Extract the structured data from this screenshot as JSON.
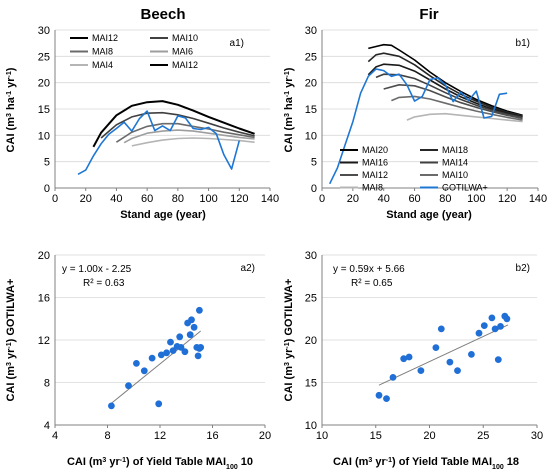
{
  "panels": {
    "a1": {
      "title": "Beech",
      "panel_label": "a1)",
      "xlabel": "Stand age (year)",
      "ylabel_main": "CAI (m",
      "ylabel_sup1": "3",
      "ylabel_mid": " ha",
      "ylabel_sup2": "-1",
      "ylabel_mid2": " yr",
      "ylabel_sup3": "-1",
      "ylabel_end": ")"
    },
    "b1": {
      "title": "Fir",
      "panel_label": "b1)",
      "xlabel": "Stand age (year)",
      "ylabel_main": "CAI (m",
      "ylabel_sup1": "3",
      "ylabel_mid": " ha",
      "ylabel_sup2": "-1",
      "ylabel_mid2": " yr",
      "ylabel_sup3": "-1",
      "ylabel_end": ")"
    },
    "a2": {
      "panel_label": "a2)",
      "equation": "y = 1.00x - 2.25",
      "r2": "R² = 0.63",
      "xlabel_pre": "CAI (m",
      "xlabel_sup1": "3",
      "xlabel_mid": " yr",
      "xlabel_sup2": "-1",
      "xlabel_post": ") of Yield Table MAI",
      "xlabel_sub": "100",
      "xlabel_end": " 10",
      "ylabel_pre": "CAI (m",
      "ylabel_sup1": "3",
      "ylabel_mid": " yr",
      "ylabel_sup2": "-1",
      "ylabel_end": ") GOTILWA+"
    },
    "b2": {
      "panel_label": "b2)",
      "equation": "y = 0.59x + 5.66",
      "r2": "R² = 0.65",
      "xlabel_pre": "CAI (m",
      "xlabel_sup1": "3",
      "xlabel_mid": " yr",
      "xlabel_sup2": "-1",
      "xlabel_post": ") of Yield Table MAI",
      "xlabel_sub": "100",
      "xlabel_end": " 18",
      "ylabel_pre": "CAI (m",
      "ylabel_sup1": "3",
      "ylabel_mid": " yr",
      "ylabel_sup2": "-1",
      "ylabel_end": ") GOTILWA+"
    }
  },
  "colors": {
    "MAI20": "#000000",
    "MAI18": "#262626",
    "MAI16": "#1a1a1a",
    "MAI14": "#404040",
    "MAI12": "#4d4d4d",
    "MAI10": "#6b6b6b",
    "MAI8": "#8c8c8c",
    "MAI6": "#9e9e9e",
    "MAI4": "#b5b5b5",
    "GOTILWA": "#1f77d4",
    "point": "#1f6fd6",
    "trend": "#7f7f7f"
  },
  "chart_data": [
    {
      "id": "a1",
      "type": "line",
      "title": "Beech",
      "xlabel": "Stand age (year)",
      "ylabel": "CAI (m3 ha-1 yr-1)",
      "xlim": [
        0,
        140
      ],
      "ylim": [
        0,
        30
      ],
      "xticks": [
        0,
        20,
        40,
        60,
        80,
        100,
        120,
        140
      ],
      "yticks": [
        0,
        5,
        10,
        15,
        20,
        25,
        30
      ],
      "legend": [
        [
          "MAI12",
          "MAI10"
        ],
        [
          "MAI8",
          "MAI6"
        ],
        [
          "MAI4",
          "MAI12"
        ]
      ],
      "series": [
        {
          "name": "MAI12",
          "color_key": "MAI20",
          "width": 2,
          "x": [
            25,
            30,
            40,
            50,
            60,
            70,
            80,
            90,
            100,
            110,
            120,
            130
          ],
          "y": [
            7.8,
            10.5,
            13.8,
            15.6,
            16.3,
            16.5,
            15.8,
            14.7,
            13.5,
            12.4,
            11.3,
            10.3
          ]
        },
        {
          "name": "MAI10",
          "color_key": "MAI14",
          "width": 1.6,
          "x": [
            30,
            40,
            50,
            60,
            70,
            80,
            90,
            100,
            110,
            120,
            130
          ],
          "y": [
            9.5,
            12.0,
            13.5,
            14.2,
            14.3,
            13.9,
            13.2,
            12.3,
            11.4,
            10.6,
            9.9
          ]
        },
        {
          "name": "MAI8",
          "color_key": "MAI10",
          "width": 1.6,
          "x": [
            40,
            50,
            60,
            70,
            80,
            90,
            100,
            110,
            120,
            130
          ],
          "y": [
            8.7,
            10.6,
            11.7,
            12.2,
            12.2,
            11.7,
            11.2,
            10.6,
            10.1,
            9.6
          ]
        },
        {
          "name": "MAI6",
          "color_key": "MAI6",
          "width": 1.6,
          "x": [
            45,
            50,
            60,
            70,
            80,
            90,
            100,
            110,
            120,
            130
          ],
          "y": [
            8.6,
            9.4,
            10.4,
            10.8,
            11.0,
            10.8,
            10.4,
            10.0,
            9.6,
            9.3
          ]
        },
        {
          "name": "MAI4",
          "color_key": "MAI4",
          "width": 1.6,
          "x": [
            50,
            60,
            70,
            80,
            90,
            100,
            110,
            120,
            130
          ],
          "y": [
            8.0,
            8.6,
            9.1,
            9.4,
            9.5,
            9.4,
            9.2,
            9.0,
            8.7
          ]
        },
        {
          "name": "GOTILWA+",
          "color_key": "GOTILWA",
          "width": 1.6,
          "x": [
            15,
            20,
            25,
            30,
            35,
            40,
            45,
            50,
            55,
            60,
            65,
            70,
            75,
            80,
            85,
            90,
            95,
            100,
            105,
            110,
            115,
            120
          ],
          "y": [
            2.6,
            3.4,
            6.1,
            8.4,
            10.2,
            11.3,
            12.5,
            10.8,
            13.2,
            14.6,
            10.9,
            11.8,
            10.9,
            13.7,
            13.3,
            11.3,
            11.1,
            11.5,
            10.3,
            6.3,
            3.6,
            9.0
          ]
        }
      ]
    },
    {
      "id": "b1",
      "type": "line",
      "title": "Fir",
      "xlabel": "Stand age (year)",
      "ylabel": "CAI (m3 ha-1 yr-1)",
      "xlim": [
        0,
        140
      ],
      "ylim": [
        0,
        30
      ],
      "xticks": [
        0,
        20,
        40,
        60,
        80,
        100,
        120,
        140
      ],
      "yticks": [
        0,
        5,
        10,
        15,
        20,
        25,
        30
      ],
      "legend": [
        [
          "MAI20",
          "MAI18"
        ],
        [
          "MAI16",
          "MAI14"
        ],
        [
          "MAI12",
          "MAI10"
        ],
        [
          "MAI8",
          "GOTILWA+"
        ]
      ],
      "series": [
        {
          "name": "MAI20",
          "color_key": "MAI20",
          "width": 1.6,
          "x": [
            30,
            40,
            45,
            50,
            60,
            70,
            80,
            90,
            100,
            110,
            120,
            130
          ],
          "y": [
            26.5,
            27.2,
            27.1,
            26.2,
            24.3,
            22.0,
            20.0,
            18.3,
            16.8,
            15.6,
            14.6,
            13.8
          ]
        },
        {
          "name": "MAI18",
          "color_key": "MAI18",
          "width": 1.6,
          "x": [
            30,
            35,
            40,
            50,
            60,
            70,
            80,
            90,
            100,
            110,
            120,
            130
          ],
          "y": [
            24.0,
            25.3,
            25.6,
            25.0,
            23.4,
            21.3,
            19.4,
            17.8,
            16.5,
            15.3,
            14.4,
            13.7
          ]
        },
        {
          "name": "MAI16",
          "color_key": "MAI16",
          "width": 1.6,
          "x": [
            30,
            35,
            40,
            50,
            60,
            70,
            80,
            90,
            100,
            110,
            120,
            130
          ],
          "y": [
            21.5,
            23.0,
            23.5,
            23.3,
            22.2,
            20.5,
            18.8,
            17.3,
            16.1,
            15.0,
            14.2,
            13.5
          ]
        },
        {
          "name": "MAI14",
          "color_key": "MAI14",
          "width": 1.6,
          "x": [
            35,
            40,
            50,
            60,
            70,
            80,
            90,
            100,
            110,
            120,
            130
          ],
          "y": [
            21.0,
            21.6,
            21.5,
            20.8,
            19.5,
            18.1,
            16.8,
            15.7,
            14.8,
            14.0,
            13.4
          ]
        },
        {
          "name": "MAI12",
          "color_key": "MAI12",
          "width": 1.6,
          "x": [
            40,
            50,
            60,
            70,
            80,
            90,
            100,
            110,
            120,
            130
          ],
          "y": [
            18.8,
            19.6,
            19.4,
            18.5,
            17.3,
            16.2,
            15.3,
            14.5,
            13.8,
            13.2
          ]
        },
        {
          "name": "MAI10",
          "color_key": "MAI10",
          "width": 1.6,
          "x": [
            45,
            50,
            60,
            70,
            80,
            90,
            100,
            110,
            120,
            130
          ],
          "y": [
            16.6,
            17.2,
            17.4,
            16.9,
            16.1,
            15.3,
            14.6,
            14.0,
            13.4,
            12.9
          ]
        },
        {
          "name": "MAI8",
          "color_key": "MAI4",
          "width": 1.6,
          "x": [
            55,
            60,
            70,
            80,
            90,
            100,
            110,
            120,
            130
          ],
          "y": [
            12.9,
            13.5,
            14.0,
            14.1,
            13.8,
            13.5,
            13.2,
            12.9,
            12.6
          ]
        },
        {
          "name": "GOTILWA+",
          "color_key": "GOTILWA",
          "width": 1.6,
          "x": [
            5,
            10,
            15,
            20,
            25,
            30,
            35,
            40,
            45,
            50,
            55,
            60,
            65,
            70,
            75,
            80,
            85,
            90,
            95,
            100,
            105,
            110,
            115,
            120
          ],
          "y": [
            0.8,
            3.8,
            8.2,
            12.6,
            18.0,
            21.2,
            22.6,
            22.3,
            21.2,
            21.6,
            19.6,
            16.5,
            17.4,
            20.6,
            20.9,
            19.6,
            16.4,
            18.2,
            16.6,
            18.4,
            13.3,
            13.6,
            17.8,
            18.0
          ]
        }
      ]
    },
    {
      "id": "a2",
      "type": "scatter",
      "xlabel": "CAI (m3 yr-1) of Yield Table MAI100 10",
      "ylabel": "CAI (m3 yr-1) GOTILWA+",
      "xlim": [
        4,
        20
      ],
      "ylim": [
        4,
        20
      ],
      "xticks": [
        4,
        8,
        12,
        16,
        20
      ],
      "yticks": [
        4,
        8,
        12,
        16,
        20
      ],
      "trendline": {
        "slope": 1.0,
        "intercept": -2.25,
        "x_range": [
          8.3,
          15.1
        ]
      },
      "x": [
        8.3,
        9.6,
        10.2,
        10.8,
        11.4,
        11.9,
        12.1,
        12.5,
        12.8,
        13.0,
        13.3,
        13.5,
        13.6,
        13.9,
        14.1,
        14.3,
        14.4,
        14.6,
        14.8,
        14.9,
        15.0,
        15.0,
        15.1
      ],
      "y": [
        5.8,
        7.7,
        9.8,
        9.1,
        10.3,
        6.0,
        10.6,
        10.8,
        11.8,
        11.0,
        11.4,
        12.3,
        11.3,
        10.9,
        13.6,
        12.5,
        13.9,
        13.2,
        11.3,
        10.5,
        11.2,
        14.8,
        11.3
      ]
    },
    {
      "id": "b2",
      "type": "scatter",
      "xlabel": "CAI (m3 yr-1) of Yield Table MAI100 18",
      "ylabel": "CAI (m3 yr-1) GOTILWA+",
      "xlim": [
        10,
        30
      ],
      "ylim": [
        10,
        30
      ],
      "xticks": [
        10,
        15,
        20,
        25,
        30
      ],
      "yticks": [
        10,
        15,
        20,
        25,
        30
      ],
      "trendline": {
        "slope": 0.59,
        "intercept": 5.66,
        "x_range": [
          15.3,
          27.3
        ]
      },
      "x": [
        15.3,
        16.0,
        16.6,
        17.6,
        18.1,
        19.2,
        20.6,
        21.1,
        21.9,
        22.6,
        23.9,
        24.6,
        25.1,
        25.8,
        26.1,
        26.4,
        26.6,
        27.0,
        27.2
      ],
      "y": [
        13.5,
        13.1,
        15.6,
        17.8,
        18.0,
        16.4,
        19.1,
        21.3,
        17.4,
        16.4,
        18.3,
        20.8,
        21.7,
        22.6,
        21.3,
        17.7,
        21.6,
        22.8,
        22.5
      ]
    }
  ]
}
